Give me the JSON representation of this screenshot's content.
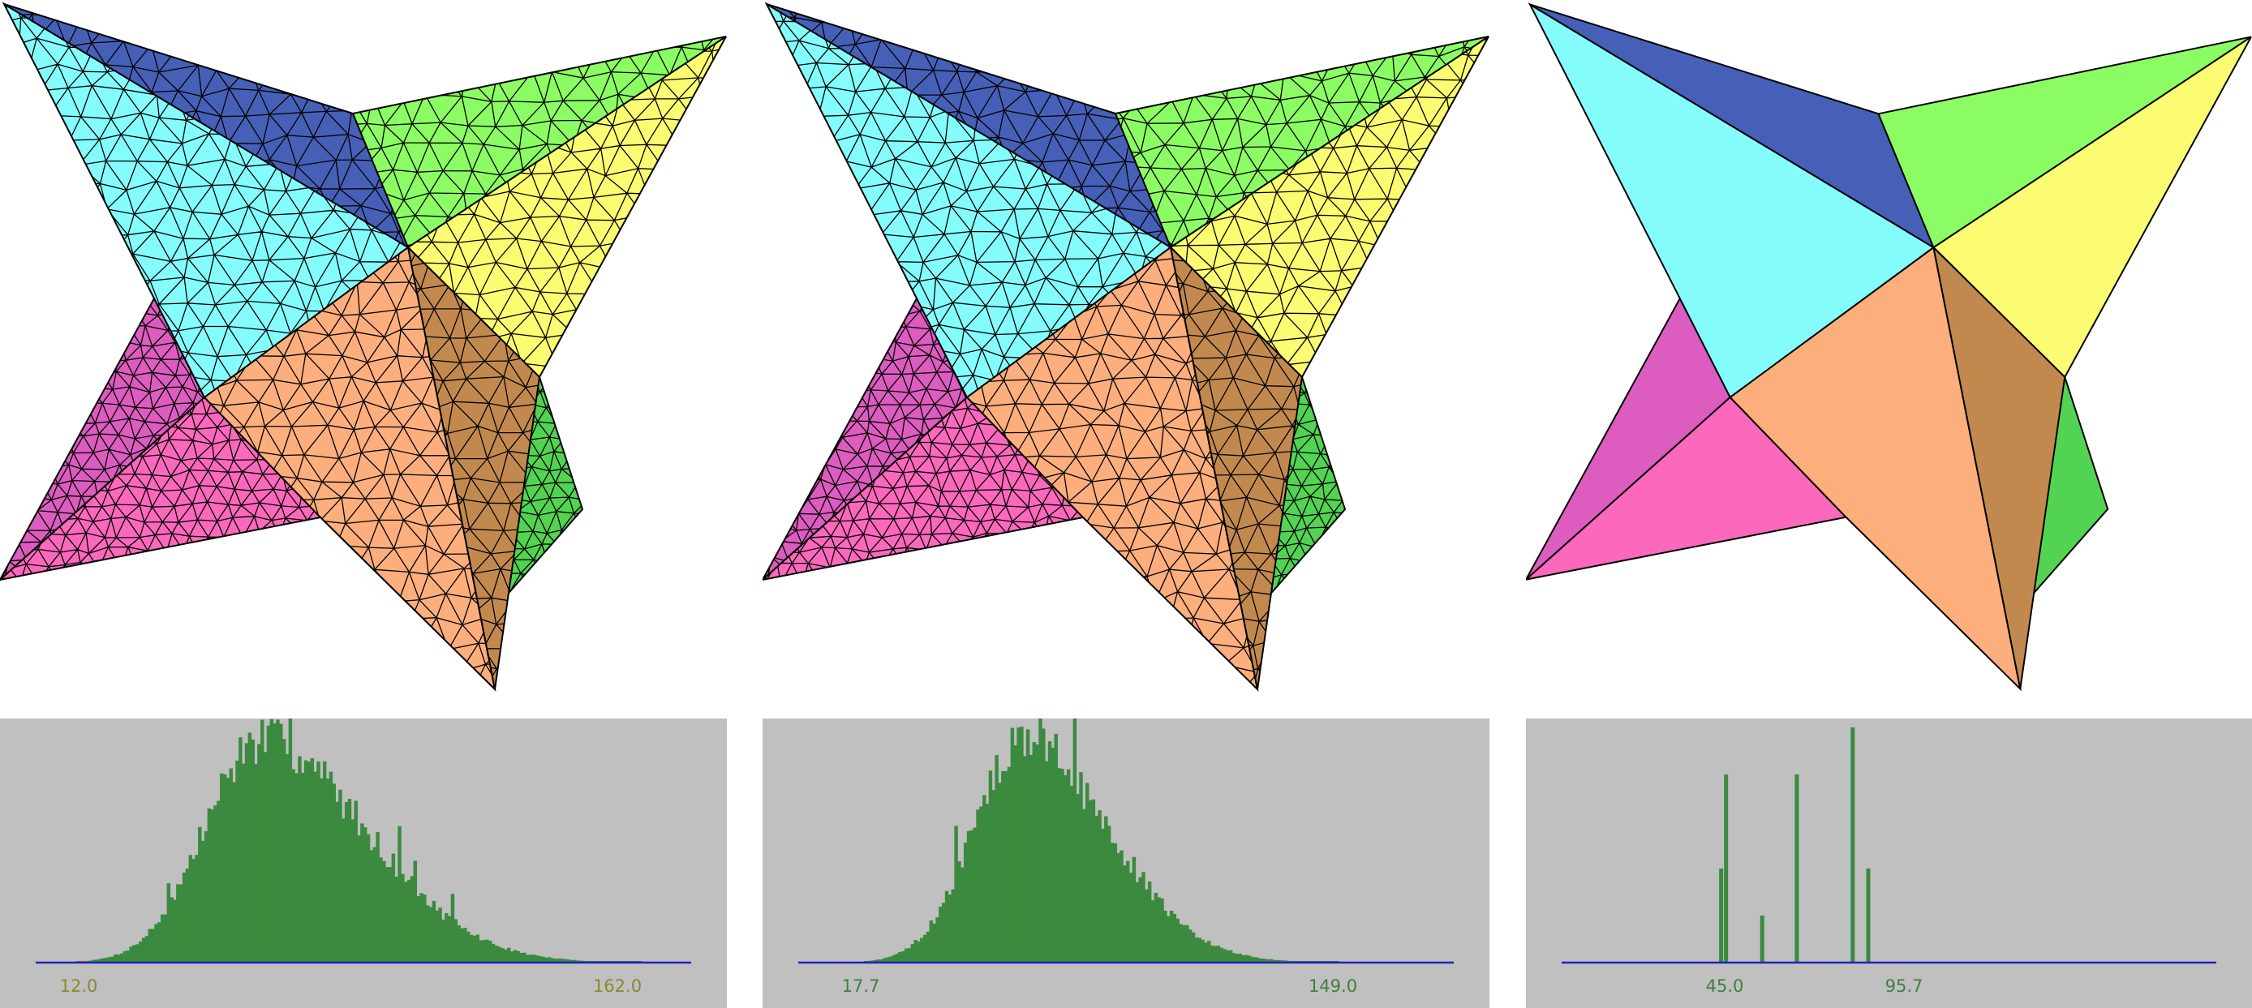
{
  "colors": {
    "background": "#ffffff",
    "histogram_panel": "#c0c0c0",
    "histogram_bar": "#3b8a3f",
    "histogram_bad_bar": "#8a8a1a",
    "axis_line": "#2020c0",
    "mesh_edge": "#000000",
    "faces": {
      "dark_blue": "#4660b8",
      "cyan": "#84fcfc",
      "light_green": "#8cfc64",
      "yellow": "#fcfc72",
      "orange": "#fcae7c",
      "brown": "#c2894e",
      "magenta": "#dc5cc0",
      "pink": "#fc68bc",
      "green": "#52d452"
    }
  },
  "panels": [
    {
      "id": "original-mesh",
      "mesh_style": "dense-triangulation",
      "histogram": {
        "min_label": "12.0",
        "max_label": "162.0",
        "min": 12.0,
        "max": 162.0,
        "label_color": "olive"
      }
    },
    {
      "id": "remeshed-mesh",
      "mesh_style": "dense-triangulation",
      "histogram": {
        "min_label": "17.7",
        "max_label": "149.0",
        "min": 17.7,
        "max": 149.0,
        "label_color": "green"
      }
    },
    {
      "id": "coarse-mesh",
      "mesh_style": "coarse-faces",
      "histogram": {
        "min_label": "45.0",
        "max_label": "95.7",
        "min": 45.0,
        "max": 95.7,
        "label_color": "green",
        "spikes": [
          {
            "x": 44.0,
            "h": 0.4
          },
          {
            "x": 45.4,
            "h": 0.8
          },
          {
            "x": 55.6,
            "h": 0.2
          },
          {
            "x": 65.4,
            "h": 0.8
          },
          {
            "x": 81.2,
            "h": 1.0
          },
          {
            "x": 85.6,
            "h": 0.4
          }
        ]
      }
    }
  ]
}
